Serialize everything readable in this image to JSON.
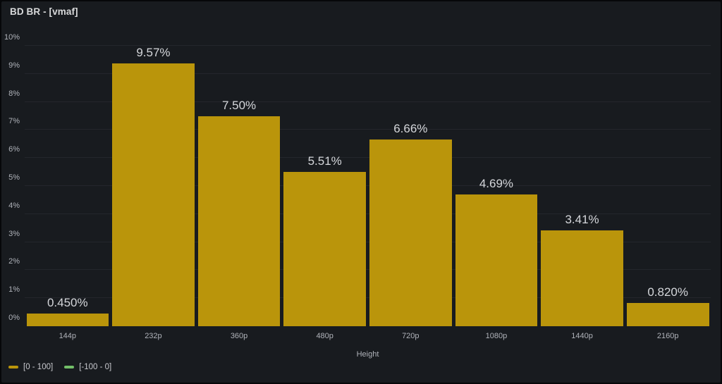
{
  "panel": {
    "title": "BD BR - [vmaf]"
  },
  "colors": {
    "panel_background": "#181b1f",
    "gridline": "#24262c",
    "bar": "#ba950b",
    "value_label_text": "#d5d7db",
    "tick_text": "#b0b3ba"
  },
  "chart_data": {
    "type": "bar",
    "title": "BD BR - [vmaf]",
    "categories": [
      "144p",
      "232p",
      "360p",
      "480p",
      "720p",
      "1080p",
      "1440p",
      "2160p"
    ],
    "values": [
      0.45,
      9.57,
      7.5,
      5.51,
      6.66,
      4.69,
      3.41,
      0.82
    ],
    "value_labels": [
      "0.450%",
      "9.57%",
      "7.50%",
      "5.51%",
      "6.66%",
      "4.69%",
      "3.41%",
      "0.820%"
    ],
    "xlabel": "Height",
    "ylabel": "",
    "ylim": [
      0,
      10
    ],
    "y_tick_step": 1,
    "y_tick_suffix": "%",
    "grid": true,
    "legend_position": "bottom-left"
  },
  "legend": {
    "items": [
      {
        "label": "[0 - 100]",
        "color": "#ba950b"
      },
      {
        "label": "[-100 - 0]",
        "color": "#73bf69"
      }
    ]
  }
}
